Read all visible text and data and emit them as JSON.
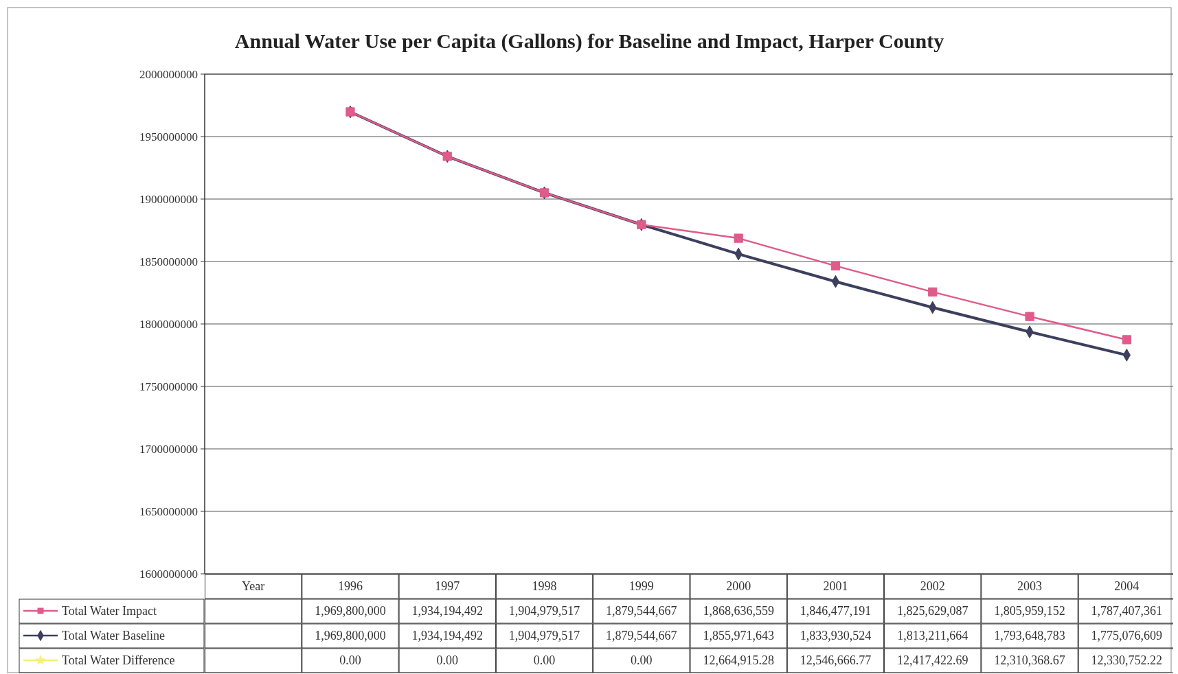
{
  "chart_data": {
    "type": "line",
    "title": "Annual Water Use per Capita (Gallons) for Baseline and Impact, Harper County",
    "categories": [
      "Year",
      "1996",
      "1997",
      "1998",
      "1999",
      "2000",
      "2001",
      "2002",
      "2003",
      "2004"
    ],
    "series": [
      {
        "name": "Total Water Impact",
        "color": "#e05a8a",
        "marker": "square",
        "values": [
          null,
          1969800000,
          1934194492,
          1904979517,
          1879544667,
          1868636559,
          1846477191,
          1825629087,
          1805959152,
          1787407361
        ],
        "value_labels": [
          null,
          "1,969,800,000",
          "1,934,194,492",
          "1,904,979,517",
          "1,879,544,667",
          "1,868,636,559",
          "1,846,477,191",
          "1,825,629,087",
          "1,805,959,152",
          "1,787,407,361"
        ]
      },
      {
        "name": "Total Water Baseline",
        "color": "#3d3f5e",
        "marker": "diamond",
        "values": [
          null,
          1969800000,
          1934194492,
          1904979517,
          1879544667,
          1855971643,
          1833930524,
          1813211664,
          1793648783,
          1775076609
        ],
        "value_labels": [
          null,
          "1,969,800,000",
          "1,934,194,492",
          "1,904,979,517",
          "1,879,544,667",
          "1,855,971,643",
          "1,833,930,524",
          "1,813,211,664",
          "1,793,648,783",
          "1,775,076,609"
        ]
      },
      {
        "name": "Total Water Difference",
        "color": "#f5f07a",
        "marker": "star",
        "values": [
          null,
          null,
          null,
          null,
          null,
          null,
          null,
          null,
          null,
          null
        ],
        "value_labels": [
          null,
          "0.00",
          "0.00",
          "0.00",
          "0.00",
          "12,664,915.28",
          "12,546,666.77",
          "12,417,422.69",
          "12,310,368.67",
          "12,330,752.22"
        ]
      }
    ],
    "ylim": [
      1600000000,
      2000000000
    ],
    "yticks": [
      1600000000,
      1650000000,
      1700000000,
      1750000000,
      1800000000,
      1850000000,
      1900000000,
      1950000000,
      2000000000
    ],
    "grid": "y",
    "legend": "bottom"
  }
}
